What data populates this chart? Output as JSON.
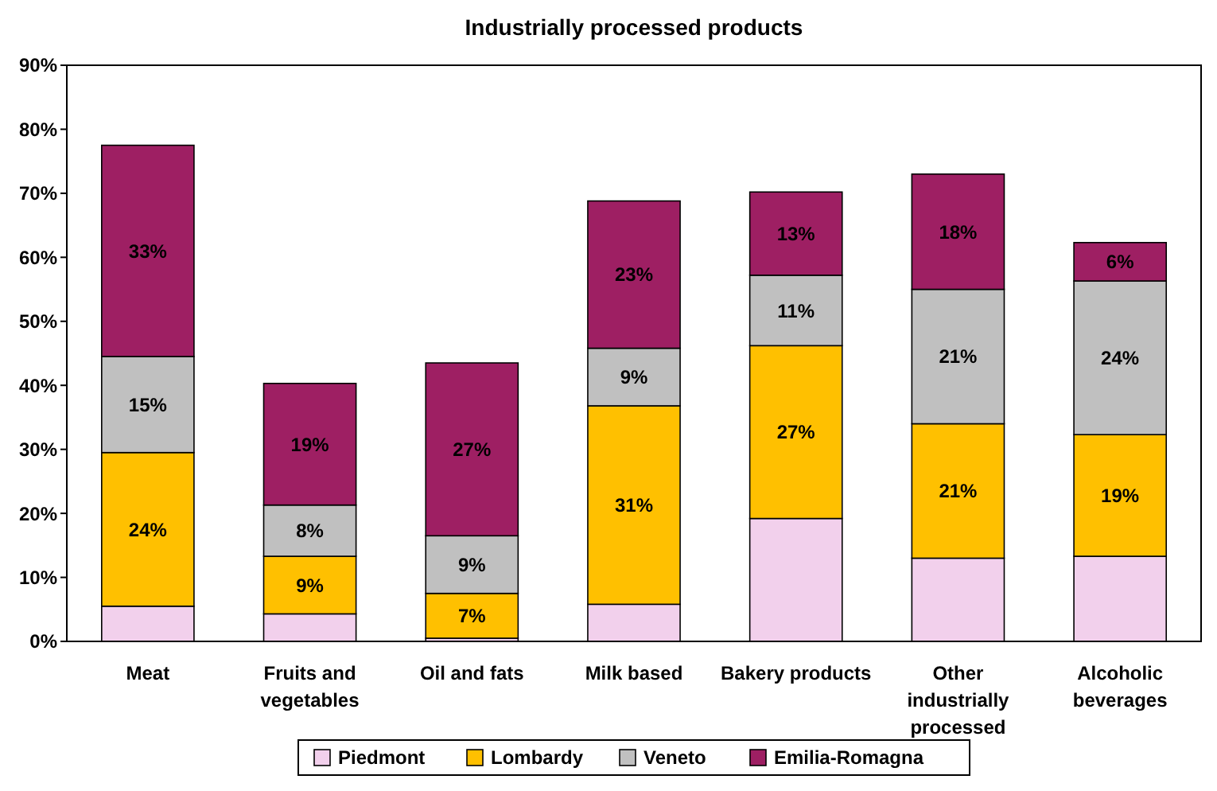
{
  "chart_data": {
    "type": "bar",
    "title": "Industrially processed products",
    "stacked": true,
    "legend": "bottom",
    "grid": false,
    "categories": [
      "Meat",
      "Fruits and vegetables",
      "Oil and fats",
      "Milk based",
      "Bakery products",
      "Other industrially processed",
      "Alcoholic beverages"
    ],
    "ylim": [
      0,
      90
    ],
    "yticks": [
      {
        "value": 0,
        "label": "0%"
      },
      {
        "value": 10,
        "label": "10%"
      },
      {
        "value": 20,
        "label": "20%"
      },
      {
        "value": 30,
        "label": "30%"
      },
      {
        "value": 40,
        "label": "40%"
      },
      {
        "value": 50,
        "label": "50%"
      },
      {
        "value": 60,
        "label": "60%"
      },
      {
        "value": 70,
        "label": "70%"
      },
      {
        "value": 80,
        "label": "80%"
      },
      {
        "value": 90,
        "label": "90%"
      }
    ],
    "series": [
      {
        "name": "Piedmont",
        "color": "#f2d0ec",
        "values": [
          5.5,
          4.3,
          0.5,
          5.8,
          19.2,
          13,
          13.3
        ],
        "value_labels": [
          null,
          null,
          null,
          null,
          null,
          null,
          null
        ]
      },
      {
        "name": "Lombardy",
        "color": "#ffc000",
        "values": [
          24,
          9,
          7,
          31,
          27,
          21,
          19
        ],
        "value_labels": [
          "24%",
          "9%",
          "7%",
          "31%",
          "27%",
          "21%",
          "19%"
        ]
      },
      {
        "name": "Veneto",
        "color": "#c0c0c0",
        "values": [
          15,
          8,
          9,
          9,
          11,
          21,
          24
        ],
        "value_labels": [
          "15%",
          "8%",
          "9%",
          "9%",
          "11%",
          "21%",
          "24%"
        ]
      },
      {
        "name": "Emilia-Romagna",
        "color": "#9e1f63",
        "values": [
          33,
          19,
          27,
          23,
          13,
          18,
          6
        ],
        "value_labels": [
          "33%",
          "19%",
          "27%",
          "23%",
          "13%",
          "18%",
          "6%"
        ]
      }
    ]
  }
}
